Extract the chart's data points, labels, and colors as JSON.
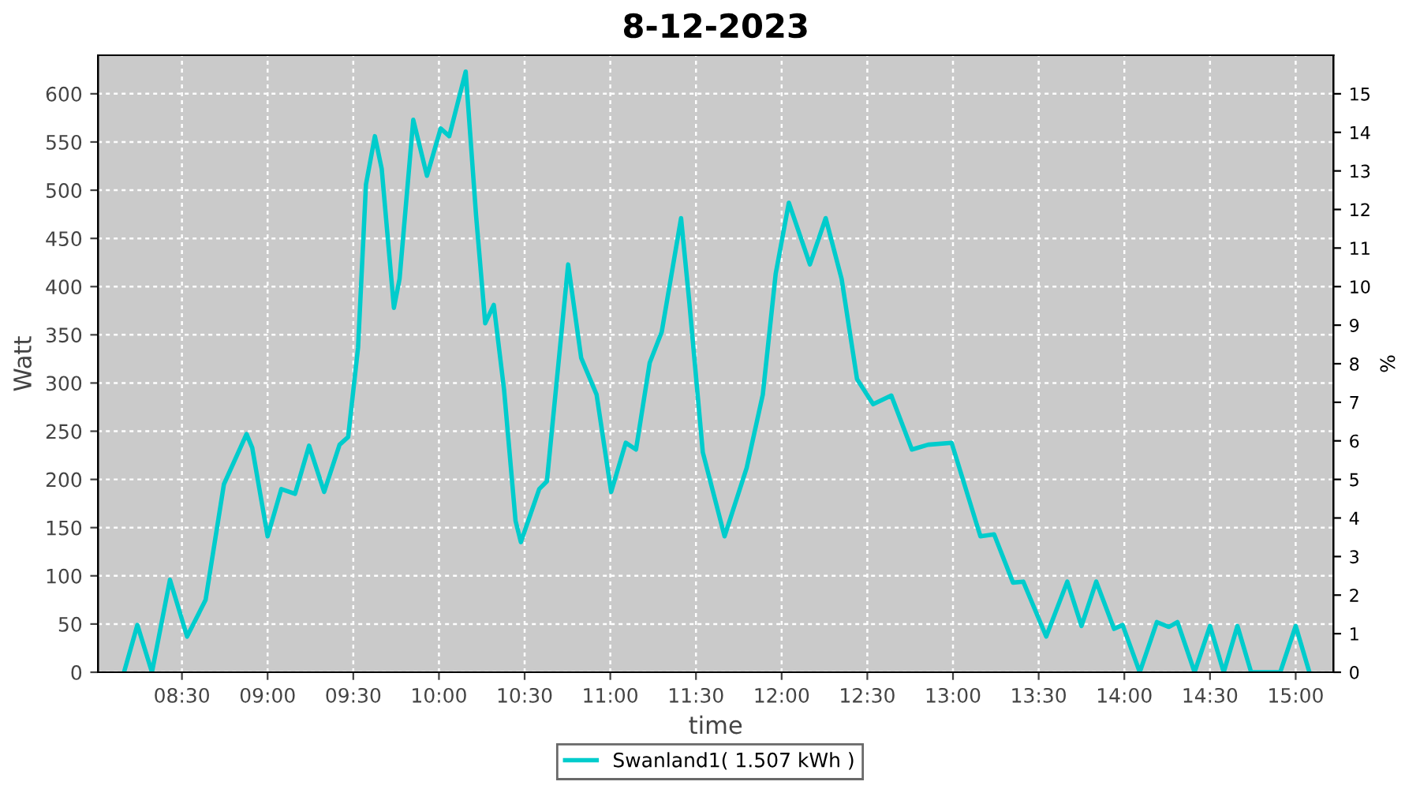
{
  "chart_data": {
    "type": "line",
    "title": "8-12-2023",
    "xlabel": "time",
    "ylabel": "Watt",
    "y2label": "%",
    "series": [
      {
        "name": "Swanland1( 1.507 kWh )",
        "color": "#00cccc",
        "x": [
          8.162,
          8.24,
          8.325,
          8.43,
          8.53,
          8.638,
          8.745,
          8.877,
          8.91,
          9.0,
          9.08,
          9.16,
          9.242,
          9.33,
          9.42,
          9.47,
          9.528,
          9.574,
          9.626,
          9.666,
          9.737,
          9.77,
          9.85,
          9.93,
          10.01,
          10.06,
          10.156,
          10.217,
          10.27,
          10.32,
          10.38,
          10.447,
          10.478,
          10.585,
          10.63,
          10.754,
          10.83,
          10.92,
          11.005,
          11.09,
          11.15,
          11.23,
          11.3,
          11.413,
          11.46,
          11.54,
          11.667,
          11.796,
          11.89,
          11.965,
          12.042,
          12.165,
          12.257,
          12.35,
          12.44,
          12.534,
          12.64,
          12.76,
          12.855,
          12.992,
          13.16,
          13.24,
          13.35,
          13.41,
          13.544,
          13.667,
          13.75,
          13.836,
          13.94,
          13.99,
          14.09,
          14.19,
          14.26,
          14.31,
          14.41,
          14.5,
          14.58,
          14.66,
          14.74,
          14.91,
          15.0,
          15.08
        ],
        "values": [
          0,
          49,
          0,
          96,
          37,
          75,
          195,
          247,
          233,
          141,
          190,
          185,
          235,
          187,
          236,
          244,
          337,
          506,
          556,
          522,
          378,
          408,
          573,
          515,
          564,
          556,
          623,
          473,
          362,
          381,
          293,
          157,
          135,
          190,
          198,
          423,
          326,
          288,
          187,
          238,
          231,
          321,
          353,
          471,
          386,
          228,
          141,
          212,
          288,
          413,
          487,
          423,
          471,
          408,
          304,
          278,
          287,
          231,
          236,
          238,
          141,
          143,
          93,
          94,
          37,
          94,
          48,
          94,
          45,
          49,
          0,
          52,
          47,
          52,
          0,
          48,
          0,
          48,
          0,
          0,
          48,
          0
        ]
      }
    ],
    "xlim": [
      8.01,
      15.22
    ],
    "xticks": [
      {
        "value": 8.5,
        "label": "08:30"
      },
      {
        "value": 9.0,
        "label": "09:00"
      },
      {
        "value": 9.5,
        "label": "09:30"
      },
      {
        "value": 10.0,
        "label": "10:00"
      },
      {
        "value": 10.5,
        "label": "10:30"
      },
      {
        "value": 11.0,
        "label": "11:00"
      },
      {
        "value": 11.5,
        "label": "11:30"
      },
      {
        "value": 12.0,
        "label": "12:00"
      },
      {
        "value": 12.5,
        "label": "12:30"
      },
      {
        "value": 13.0,
        "label": "13:00"
      },
      {
        "value": 13.5,
        "label": "13:30"
      },
      {
        "value": 14.0,
        "label": "14:00"
      },
      {
        "value": 14.5,
        "label": "14:30"
      },
      {
        "value": 15.0,
        "label": "15:00"
      }
    ],
    "ylim": [
      0,
      640
    ],
    "yticks": [
      0,
      50,
      100,
      150,
      200,
      250,
      300,
      350,
      400,
      450,
      500,
      550,
      600
    ],
    "y2lim": [
      0,
      16
    ],
    "y2ticks": [
      0,
      1,
      2,
      3,
      4,
      5,
      6,
      7,
      8,
      9,
      10,
      11,
      12,
      13,
      14,
      15
    ],
    "grid": true,
    "legend": "bottom",
    "marker": "none",
    "line_style": "solid"
  }
}
